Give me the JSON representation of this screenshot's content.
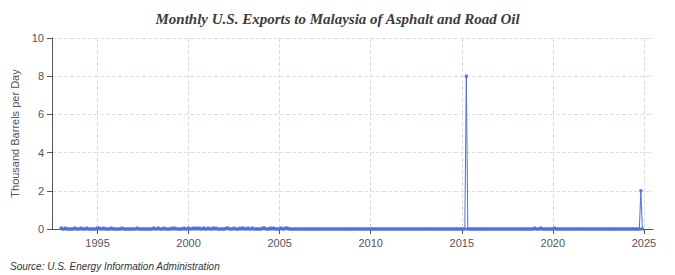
{
  "chart_data": {
    "type": "line",
    "title": "Monthly U.S. Exports to Malaysia of Asphalt and Road Oil",
    "ylabel": "Thousand Barrels per Day",
    "annotation": "Source: U.S. Energy Information Administration",
    "marker": "square",
    "grid": true,
    "xlim": [
      1992.5,
      2025.5
    ],
    "xticks": [
      1995,
      2000,
      2005,
      2010,
      2015,
      2020,
      2025
    ],
    "ylim": [
      0,
      10
    ],
    "yticks": [
      0,
      2,
      4,
      6,
      8,
      10
    ],
    "x": [
      1993.0,
      1993.083,
      1993.167,
      1993.25,
      1993.333,
      1993.417,
      1993.5,
      1993.583,
      1993.667,
      1993.75,
      1993.833,
      1993.917,
      1994.0,
      1994.083,
      1994.167,
      1994.25,
      1994.333,
      1994.417,
      1994.5,
      1994.583,
      1994.667,
      1994.75,
      1994.833,
      1994.917,
      1995.0,
      1995.083,
      1995.167,
      1995.25,
      1995.333,
      1995.417,
      1995.5,
      1995.583,
      1995.667,
      1995.75,
      1995.833,
      1995.917,
      1996.0,
      1996.083,
      1996.167,
      1996.25,
      1996.333,
      1996.417,
      1996.5,
      1996.583,
      1996.667,
      1996.75,
      1996.833,
      1996.917,
      1997.0,
      1997.083,
      1997.167,
      1997.25,
      1997.333,
      1997.417,
      1997.5,
      1997.583,
      1997.667,
      1997.75,
      1997.833,
      1997.917,
      1998.0,
      1998.083,
      1998.167,
      1998.25,
      1998.333,
      1998.417,
      1998.5,
      1998.583,
      1998.667,
      1998.75,
      1998.833,
      1998.917,
      1999.0,
      1999.083,
      1999.167,
      1999.25,
      1999.333,
      1999.417,
      1999.5,
      1999.583,
      1999.667,
      1999.75,
      1999.833,
      1999.917,
      2000.0,
      2000.083,
      2000.167,
      2000.25,
      2000.333,
      2000.417,
      2000.5,
      2000.583,
      2000.667,
      2000.75,
      2000.833,
      2000.917,
      2001.0,
      2001.083,
      2001.167,
      2001.25,
      2001.333,
      2001.417,
      2001.5,
      2001.583,
      2001.667,
      2001.75,
      2001.833,
      2001.917,
      2002.0,
      2002.083,
      2002.167,
      2002.25,
      2002.333,
      2002.417,
      2002.5,
      2002.583,
      2002.667,
      2002.75,
      2002.833,
      2002.917,
      2003.0,
      2003.083,
      2003.167,
      2003.25,
      2003.333,
      2003.417,
      2003.5,
      2003.583,
      2003.667,
      2003.75,
      2003.833,
      2003.917,
      2004.0,
      2004.083,
      2004.167,
      2004.25,
      2004.333,
      2004.417,
      2004.5,
      2004.583,
      2004.667,
      2004.75,
      2004.833,
      2004.917,
      2005.0,
      2005.083,
      2005.167,
      2005.25,
      2005.333,
      2005.417,
      2005.5,
      2005.583,
      2005.667,
      2005.75,
      2005.833,
      2005.917,
      2006.0,
      2006.083,
      2006.167,
      2006.25,
      2006.333,
      2006.417,
      2006.5,
      2006.583,
      2006.667,
      2006.75,
      2006.833,
      2006.917,
      2007.0,
      2007.083,
      2007.167,
      2007.25,
      2007.333,
      2007.417,
      2007.5,
      2007.583,
      2007.667,
      2007.75,
      2007.833,
      2007.917,
      2008.0,
      2008.083,
      2008.167,
      2008.25,
      2008.333,
      2008.417,
      2008.5,
      2008.583,
      2008.667,
      2008.75,
      2008.833,
      2008.917,
      2009.0,
      2009.083,
      2009.167,
      2009.25,
      2009.333,
      2009.417,
      2009.5,
      2009.583,
      2009.667,
      2009.75,
      2009.833,
      2009.917,
      2010.0,
      2010.083,
      2010.167,
      2010.25,
      2010.333,
      2010.417,
      2010.5,
      2010.583,
      2010.667,
      2010.75,
      2010.833,
      2010.917,
      2011.0,
      2011.083,
      2011.167,
      2011.25,
      2011.333,
      2011.417,
      2011.5,
      2011.583,
      2011.667,
      2011.75,
      2011.833,
      2011.917,
      2012.0,
      2012.083,
      2012.167,
      2012.25,
      2012.333,
      2012.417,
      2012.5,
      2012.583,
      2012.667,
      2012.75,
      2012.833,
      2012.917,
      2013.0,
      2013.083,
      2013.167,
      2013.25,
      2013.333,
      2013.417,
      2013.5,
      2013.583,
      2013.667,
      2013.75,
      2013.833,
      2013.917,
      2014.0,
      2014.083,
      2014.167,
      2014.25,
      2014.333,
      2014.417,
      2014.5,
      2014.583,
      2014.667,
      2014.75,
      2014.833,
      2014.917,
      2015.0,
      2015.083,
      2015.167,
      2015.25,
      2015.333,
      2015.417,
      2015.5,
      2015.583,
      2015.667,
      2015.75,
      2015.833,
      2015.917,
      2016.0,
      2016.083,
      2016.167,
      2016.25,
      2016.333,
      2016.417,
      2016.5,
      2016.583,
      2016.667,
      2016.75,
      2016.833,
      2016.917,
      2017.0,
      2017.083,
      2017.167,
      2017.25,
      2017.333,
      2017.417,
      2017.5,
      2017.583,
      2017.667,
      2017.75,
      2017.833,
      2017.917,
      2018.0,
      2018.083,
      2018.167,
      2018.25,
      2018.333,
      2018.417,
      2018.5,
      2018.583,
      2018.667,
      2018.75,
      2018.833,
      2018.917,
      2019.0,
      2019.083,
      2019.167,
      2019.25,
      2019.333,
      2019.417,
      2019.5,
      2019.583,
      2019.667,
      2019.75,
      2019.833,
      2019.917,
      2020.0,
      2020.083,
      2020.167,
      2020.25,
      2020.333,
      2020.417,
      2020.5,
      2020.583,
      2020.667,
      2020.75,
      2020.833,
      2020.917,
      2021.0,
      2021.083,
      2021.167,
      2021.25,
      2021.333,
      2021.417,
      2021.5,
      2021.583,
      2021.667,
      2021.75,
      2021.833,
      2021.917,
      2022.0,
      2022.083,
      2022.167,
      2022.25,
      2022.333,
      2022.417,
      2022.5,
      2022.583,
      2022.667,
      2022.75,
      2022.833,
      2022.917,
      2023.0,
      2023.083,
      2023.167,
      2023.25,
      2023.333,
      2023.417,
      2023.5,
      2023.583,
      2023.667,
      2023.75,
      2023.833,
      2023.917,
      2024.0,
      2024.083,
      2024.167,
      2024.25,
      2024.333,
      2024.417,
      2024.5,
      2024.583,
      2024.667,
      2024.75,
      2024.833,
      2024.917
    ],
    "values": [
      0.05,
      0.0,
      0.0,
      0.05,
      0.0,
      0.0,
      0.0,
      0.0,
      0.0,
      0.05,
      0.0,
      0.0,
      0.0,
      0.05,
      0.0,
      0.0,
      0.0,
      0.05,
      0.0,
      0.0,
      0.0,
      0.0,
      0.0,
      0.0,
      0.05,
      0.05,
      0.0,
      0.0,
      0.05,
      0.0,
      0.0,
      0.0,
      0.0,
      0.05,
      0.0,
      0.0,
      0.0,
      0.0,
      0.0,
      0.0,
      0.05,
      0.0,
      0.0,
      0.0,
      0.0,
      0.0,
      0.0,
      0.0,
      0.0,
      0.0,
      0.05,
      0.0,
      0.0,
      0.0,
      0.0,
      0.0,
      0.0,
      0.0,
      0.0,
      0.0,
      0.0,
      0.05,
      0.0,
      0.0,
      0.05,
      0.0,
      0.0,
      0.0,
      0.05,
      0.0,
      0.0,
      0.0,
      0.0,
      0.05,
      0.0,
      0.05,
      0.0,
      0.0,
      0.0,
      0.0,
      0.0,
      0.05,
      0.0,
      0.0,
      0.05,
      0.0,
      0.0,
      0.05,
      0.0,
      0.05,
      0.0,
      0.05,
      0.0,
      0.0,
      0.05,
      0.0,
      0.0,
      0.05,
      0.0,
      0.0,
      0.05,
      0.0,
      0.05,
      0.0,
      0.0,
      0.0,
      0.0,
      0.0,
      0.0,
      0.05,
      0.05,
      0.0,
      0.0,
      0.0,
      0.05,
      0.0,
      0.0,
      0.0,
      0.05,
      0.0,
      0.05,
      0.0,
      0.0,
      0.05,
      0.0,
      0.0,
      0.05,
      0.0,
      0.0,
      0.0,
      0.0,
      0.0,
      0.0,
      0.05,
      0.05,
      0.0,
      0.0,
      0.0,
      0.05,
      0.0,
      0.05,
      0.0,
      0.0,
      0.0,
      0.0,
      0.05,
      0.0,
      0.0,
      0.05,
      0.05,
      0.0,
      0.0,
      0.0,
      0.0,
      0.0,
      0.0,
      0.0,
      0.0,
      0.0,
      0.0,
      0.0,
      0.0,
      0.0,
      0.0,
      0.0,
      0.0,
      0.0,
      0.0,
      0.0,
      0.0,
      0.0,
      0.0,
      0.0,
      0.0,
      0.0,
      0.0,
      0.0,
      0.0,
      0.0,
      0.0,
      0.0,
      0.0,
      0.0,
      0.0,
      0.0,
      0.0,
      0.0,
      0.0,
      0.0,
      0.0,
      0.0,
      0.0,
      0.0,
      0.0,
      0.0,
      0.0,
      0.0,
      0.0,
      0.0,
      0.0,
      0.0,
      0.0,
      0.0,
      0.0,
      0.0,
      0.0,
      0.0,
      0.0,
      0.0,
      0.0,
      0.0,
      0.0,
      0.0,
      0.0,
      0.0,
      0.0,
      0.0,
      0.0,
      0.0,
      0.0,
      0.0,
      0.0,
      0.0,
      0.0,
      0.0,
      0.0,
      0.0,
      0.0,
      0.0,
      0.0,
      0.0,
      0.0,
      0.0,
      0.0,
      0.0,
      0.0,
      0.0,
      0.0,
      0.0,
      0.0,
      0.0,
      0.0,
      0.0,
      0.0,
      0.0,
      0.0,
      0.0,
      0.0,
      0.0,
      0.0,
      0.0,
      0.0,
      0.0,
      0.0,
      0.0,
      0.0,
      0.0,
      0.0,
      0.0,
      0.0,
      0.0,
      0.0,
      0.0,
      0.0,
      0.0,
      0.0,
      0.0,
      8.0,
      0.0,
      0.0,
      0.0,
      0.0,
      0.0,
      0.0,
      0.0,
      0.0,
      0.0,
      0.0,
      0.0,
      0.0,
      0.0,
      0.0,
      0.0,
      0.0,
      0.0,
      0.0,
      0.0,
      0.0,
      0.0,
      0.0,
      0.0,
      0.0,
      0.0,
      0.0,
      0.0,
      0.0,
      0.0,
      0.0,
      0.0,
      0.0,
      0.0,
      0.0,
      0.0,
      0.0,
      0.0,
      0.0,
      0.0,
      0.0,
      0.0,
      0.0,
      0.0,
      0.0,
      0.05,
      0.0,
      0.0,
      0.0,
      0.05,
      0.0,
      0.0,
      0.0,
      0.0,
      0.0,
      0.0,
      0.0,
      0.0,
      0.05,
      0.0,
      0.0,
      0.0,
      0.0,
      0.0,
      0.0,
      0.0,
      0.0,
      0.0,
      0.0,
      0.0,
      0.0,
      0.0,
      0.0,
      0.0,
      0.0,
      0.0,
      0.0,
      0.0,
      0.0,
      0.0,
      0.0,
      0.0,
      0.0,
      0.0,
      0.0,
      0.0,
      0.0,
      0.0,
      0.0,
      0.0,
      0.0,
      0.0,
      0.0,
      0.0,
      0.0,
      0.0,
      0.0,
      0.0,
      0.0,
      0.0,
      0.0,
      0.0,
      0.0,
      0.0,
      0.0,
      0.0,
      0.0,
      0.0,
      0.0,
      0.0,
      0.0,
      0.0,
      0.0,
      0.0,
      0.0,
      2.0,
      0.0
    ]
  }
}
